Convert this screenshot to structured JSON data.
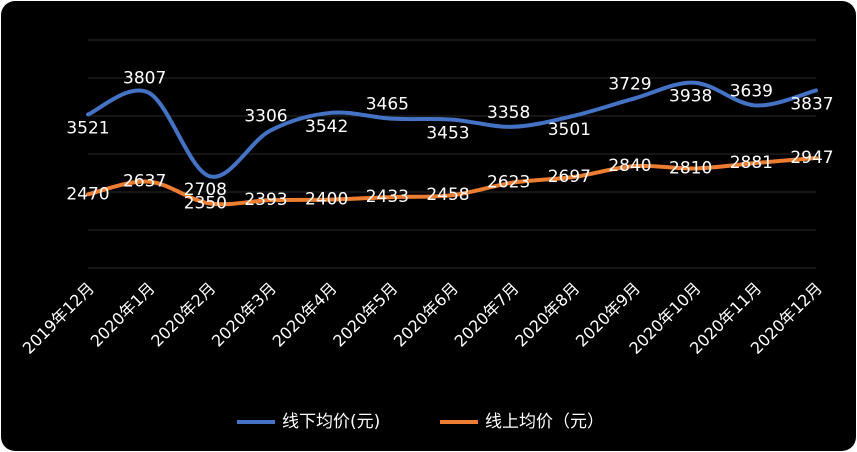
{
  "chart_data": {
    "type": "line",
    "categories": [
      "2019年12月",
      "2020年1月",
      "2020年2月",
      "2020年3月",
      "2020年4月",
      "2020年5月",
      "2020年6月",
      "2020年7月",
      "2020年8月",
      "2020年9月",
      "2020年10月",
      "2020年11月",
      "2020年12月"
    ],
    "series": [
      {
        "name": "线下均价(元)",
        "color": "#4472c4",
        "values": [
          3521,
          3807,
          2708,
          3306,
          3542,
          3465,
          3453,
          3358,
          3501,
          3729,
          3938,
          3639,
          3837
        ]
      },
      {
        "name": "线上均价（元）",
        "color": "#ed7d31",
        "values": [
          2470,
          2637,
          2350,
          2393,
          2400,
          2433,
          2458,
          2623,
          2697,
          2840,
          2810,
          2881,
          2947
        ]
      }
    ],
    "ylim": [
      1500,
      4500
    ],
    "yticks": [
      1500,
      2000,
      2500,
      3000,
      3500,
      4000,
      4500
    ],
    "grid": true,
    "smooth": true,
    "legend": "bottom"
  }
}
